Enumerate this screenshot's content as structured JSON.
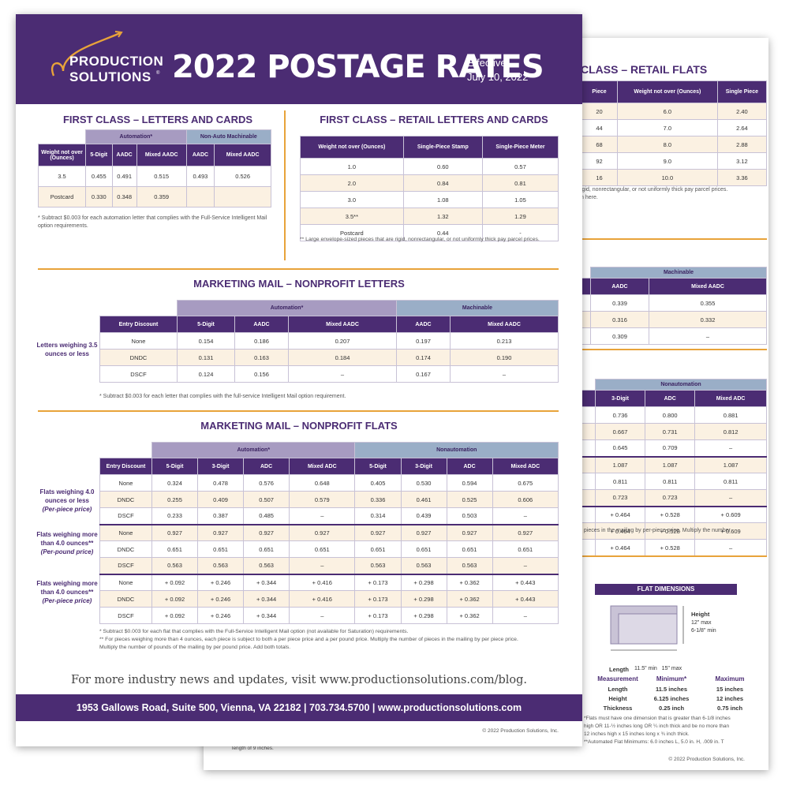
{
  "back": {
    "retail_flats_title": "CLASS – RETAIL FLATS",
    "retail_flats_headers": [
      "Piece",
      "Weight not over (Ounces)",
      "Single Piece"
    ],
    "retail_flats_rows": [
      [
        "20",
        "6.0",
        "2.40"
      ],
      [
        "44",
        "7.0",
        "2.64"
      ],
      [
        "68",
        "8.0",
        "2.88"
      ],
      [
        "92",
        "9.0",
        "3.12"
      ],
      [
        "16",
        "10.0",
        "3.36"
      ]
    ],
    "retail_note_1": "igid, nonrectangular, or not uniformly thick pay parcel prices.",
    "retail_note_2": "n here.",
    "machinable_group": "Machinable",
    "machinable_headers": [
      "AADC",
      "Mixed AADC"
    ],
    "machinable_rows": [
      [
        "0.339",
        "0.355"
      ],
      [
        "0.316",
        "0.332"
      ],
      [
        "0.309",
        "–"
      ]
    ],
    "nonauto_group": "Nonautomation",
    "nonauto_headers": [
      "3-Digit",
      "ADC",
      "Mixed ADC"
    ],
    "nonauto_rows": [
      [
        "0.736",
        "0.800",
        "0.881"
      ],
      [
        "0.667",
        "0.731",
        "0.812"
      ],
      [
        "0.645",
        "0.709",
        "–"
      ],
      [
        "1.087",
        "1.087",
        "1.087"
      ],
      [
        "0.811",
        "0.811",
        "0.811"
      ],
      [
        "0.723",
        "0.723",
        "–"
      ],
      [
        "+ 0.464",
        "+ 0.528",
        "+ 0.609"
      ],
      [
        "+ 0.464",
        "+ 0.528",
        "+ 0.609"
      ],
      [
        "+ 0.464",
        "+ 0.528",
        "–"
      ]
    ],
    "nonauto_note": "f pieces in the mailing by per-piece price. Multiply the number",
    "flat_dim_title": "FLAT DIMENSIONS",
    "dim_height": "Height",
    "dim_height_vals": "12\" max\n6-1/8\" min",
    "dim_length": "Length",
    "dim_length_vals": "11.5\" min   15\" max",
    "dim_headers": [
      "Measurement",
      "Minimum*",
      "Maximum"
    ],
    "dim_rows": [
      [
        "Length",
        "11.5 inches",
        "15 inches"
      ],
      [
        "Height",
        "6.125 inches",
        "12 inches"
      ],
      [
        "Thickness",
        "0.25 inch",
        "0.75 inch"
      ]
    ],
    "dim_note_1": "*Flats must have one dimension that is greater than 6-1/8 inches",
    "dim_note_2": "high OR 11-½ inches long OR ¼ inch thick and be no more than",
    "dim_note_3": "12 inches high x 15 inches long x ¾ inch thick.",
    "dim_note_4": "**Automated Flat Minimums: 6.0 inches L, 5.0 in. H, .009 in. T",
    "length_note": "length of 9 inches.",
    "copyright": "© 2022 Production Solutions, Inc."
  },
  "front": {
    "logo_line1": "PRODUCTION",
    "logo_line2": "SOLUTIONS",
    "logo_reg": "®",
    "title": "2022 POSTAGE RATES",
    "effective_1": "Effective",
    "effective_2": "July 10, 2022",
    "fc_title": "FIRST CLASS – LETTERS AND CARDS",
    "fc_group_auto": "Automation*",
    "fc_group_nonauto": "Non-Auto Machinable",
    "fc_headers": [
      "Weight not over (Ounces)",
      "5-Digit",
      "AADC",
      "Mixed AADC",
      "AADC",
      "Mixed AADC"
    ],
    "fc_rows": [
      [
        "3.5",
        "0.455",
        "0.491",
        "0.515",
        "0.493",
        "0.526"
      ],
      [
        "Postcard",
        "0.330",
        "0.348",
        "0.359",
        "",
        ""
      ]
    ],
    "fc_note": "* Subtract $0.003 for each automation letter that complies with the Full-Service Intelligent Mail option requirements.",
    "rl_title": "FIRST CLASS – RETAIL LETTERS AND CARDS",
    "rl_headers": [
      "Weight not over (Ounces)",
      "Single-Piece Stamp",
      "Single-Piece Meter"
    ],
    "rl_rows": [
      [
        "1.0",
        "0.60",
        "0.57"
      ],
      [
        "2.0",
        "0.84",
        "0.81"
      ],
      [
        "3.0",
        "1.08",
        "1.05"
      ],
      [
        "3.5**",
        "1.32",
        "1.29"
      ],
      [
        "Postcard",
        "0.44",
        "-"
      ]
    ],
    "rl_note": "** Large envelope-sized pieces that are rigid, nonrectangular, or not uniformly thick pay parcel prices.",
    "mml_title": "MARKETING MAIL – NONPROFIT LETTERS",
    "mml_group_auto": "Automation*",
    "mml_group_mach": "Machinable",
    "mml_headers": [
      "Entry Discount",
      "5-Digit",
      "AADC",
      "Mixed AADC",
      "AADC",
      "Mixed AADC"
    ],
    "mml_rows": [
      [
        "None",
        "0.154",
        "0.186",
        "0.207",
        "0.197",
        "0.213"
      ],
      [
        "DNDC",
        "0.131",
        "0.163",
        "0.184",
        "0.174",
        "0.190"
      ],
      [
        "DSCF",
        "0.124",
        "0.156",
        "–",
        "0.167",
        "–"
      ]
    ],
    "mml_label": "Letters weighing 3.5 ounces or less",
    "mml_note": "* Subtract $0.003 for each letter that complies with the full-service Intelligent Mail option requirement.",
    "mmf_title": "MARKETING MAIL – NONPROFIT FLATS",
    "mmf_group_auto": "Automation*",
    "mmf_group_nonauto": "Nonautomation",
    "mmf_headers": [
      "Entry Discount",
      "5-Digit",
      "3-Digit",
      "ADC",
      "Mixed ADC",
      "5-Digit",
      "3-Digit",
      "ADC",
      "Mixed ADC"
    ],
    "mmf_rows": [
      [
        "None",
        "0.324",
        "0.478",
        "0.576",
        "0.648",
        "0.405",
        "0.530",
        "0.594",
        "0.675"
      ],
      [
        "DNDC",
        "0.255",
        "0.409",
        "0.507",
        "0.579",
        "0.336",
        "0.461",
        "0.525",
        "0.606"
      ],
      [
        "DSCF",
        "0.233",
        "0.387",
        "0.485",
        "–",
        "0.314",
        "0.439",
        "0.503",
        "–"
      ],
      [
        "None",
        "0.927",
        "0.927",
        "0.927",
        "0.927",
        "0.927",
        "0.927",
        "0.927",
        "0.927"
      ],
      [
        "DNDC",
        "0.651",
        "0.651",
        "0.651",
        "0.651",
        "0.651",
        "0.651",
        "0.651",
        "0.651"
      ],
      [
        "DSCF",
        "0.563",
        "0.563",
        "0.563",
        "–",
        "0.563",
        "0.563",
        "0.563",
        "–"
      ],
      [
        "None",
        "+ 0.092",
        "+ 0.246",
        "+ 0.344",
        "+ 0.416",
        "+ 0.173",
        "+ 0.298",
        "+ 0.362",
        "+ 0.443"
      ],
      [
        "DNDC",
        "+ 0.092",
        "+ 0.246",
        "+ 0.344",
        "+ 0.416",
        "+ 0.173",
        "+ 0.298",
        "+ 0.362",
        "+ 0.443"
      ],
      [
        "DSCF",
        "+ 0.092",
        "+ 0.246",
        "+ 0.344",
        "–",
        "+ 0.173",
        "+ 0.298",
        "+ 0.362",
        "–"
      ]
    ],
    "mmf_label1_a": "Flats weighing 4.0 ounces or less",
    "mmf_label1_b": "(Per-piece price)",
    "mmf_label2_a": "Flats weighing more than 4.0 ounces**",
    "mmf_label2_b": "(Per-pound price)",
    "mmf_label3_a": "Flats weighing more than 4.0 ounces**",
    "mmf_label3_b": "(Per-piece price)",
    "mmf_note_1": "* Subtract $0.003 for each flat that complies with the Full-Service Intelligent Mail option (not available for Saturation) requirements.",
    "mmf_note_2": "** For pieces weighing more than 4 ounces, each piece is subject to both a per piece price and a per pound price. Multiply the number of pieces in the mailing by per piece price.",
    "mmf_note_3": "Multiply the number of pounds of the mailing by per pound price. Add both totals.",
    "blog_line": "For more industry news and updates, visit www.productionsolutions.com/blog.",
    "address": "1953 Gallows Road, Suite 500, Vienna, VA 22182 | 703.734.5700 | www.productionsolutions.com",
    "copyright": "© 2022 Production Solutions, Inc."
  }
}
